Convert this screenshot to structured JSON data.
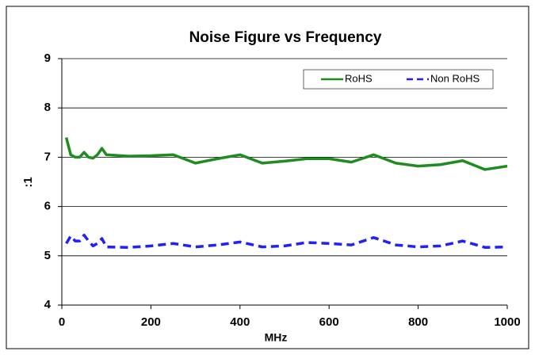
{
  "chart_data": {
    "type": "line",
    "title": "Noise Figure vs Frequency",
    "x_label": "MHz",
    "y_label": ":1",
    "x": [
      10,
      20,
      30,
      40,
      50,
      60,
      70,
      80,
      90,
      100,
      150,
      200,
      250,
      300,
      350,
      400,
      450,
      500,
      550,
      600,
      650,
      700,
      750,
      800,
      850,
      900,
      950,
      1000
    ],
    "series": [
      {
        "name": "RoHS",
        "color": "#1e8c1e",
        "dashed": false,
        "values": [
          7.4,
          7.05,
          7.0,
          7.0,
          7.1,
          7.0,
          6.98,
          7.05,
          7.18,
          7.05,
          7.02,
          7.03,
          7.05,
          6.88,
          6.97,
          7.05,
          6.88,
          6.92,
          6.97,
          6.97,
          6.9,
          7.05,
          6.88,
          6.82,
          6.85,
          6.93,
          6.75,
          6.82
        ]
      },
      {
        "name": "Non RoHS",
        "color": "#2020ff",
        "dashed": true,
        "values": [
          5.25,
          5.4,
          5.3,
          5.3,
          5.42,
          5.3,
          5.2,
          5.25,
          5.35,
          5.18,
          5.17,
          5.2,
          5.25,
          5.18,
          5.22,
          5.28,
          5.18,
          5.2,
          5.27,
          5.25,
          5.22,
          5.37,
          5.22,
          5.18,
          5.2,
          5.3,
          5.17,
          5.18
        ]
      }
    ],
    "xlim": [
      0,
      1000
    ],
    "xticks": [
      0,
      200,
      400,
      600,
      800,
      1000
    ],
    "ylim": [
      4,
      9
    ],
    "yticks": [
      4,
      5,
      6,
      7,
      8,
      9
    ],
    "grid": true,
    "legend": "top-right"
  }
}
